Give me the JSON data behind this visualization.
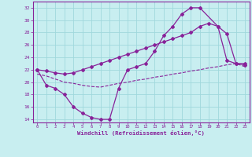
{
  "xlabel": "Windchill (Refroidissement éolien,°C)",
  "bg_color": "#c8eef0",
  "grid_color": "#a0d8dc",
  "line_color": "#882299",
  "xlim": [
    -0.5,
    23.5
  ],
  "ylim": [
    13.5,
    33
  ],
  "xticks": [
    0,
    1,
    2,
    3,
    4,
    5,
    6,
    7,
    8,
    9,
    10,
    11,
    12,
    13,
    14,
    15,
    16,
    17,
    18,
    19,
    20,
    21,
    22,
    23
  ],
  "yticks": [
    14,
    16,
    18,
    20,
    22,
    24,
    26,
    28,
    30,
    32
  ],
  "line1_x": [
    0,
    1,
    2,
    3,
    4,
    5,
    6,
    7,
    8,
    9,
    10,
    11,
    12,
    13,
    14,
    15,
    16,
    17,
    18,
    20,
    21,
    22,
    23
  ],
  "line1_y": [
    22,
    19.5,
    19,
    18,
    16,
    15,
    14.3,
    14,
    14,
    19,
    22,
    22.5,
    23,
    25,
    27.5,
    29,
    31,
    32,
    32,
    29,
    23.5,
    23,
    23
  ],
  "line2_x": [
    0,
    1,
    2,
    3,
    4,
    5,
    6,
    7,
    8,
    9,
    10,
    11,
    12,
    13,
    14,
    15,
    16,
    17,
    18,
    19,
    20,
    21,
    22,
    23
  ],
  "line2_y": [
    21.3,
    21.0,
    20.5,
    20.0,
    19.8,
    19.5,
    19.3,
    19.2,
    19.5,
    19.8,
    20.0,
    20.3,
    20.5,
    20.8,
    21.0,
    21.3,
    21.5,
    21.8,
    22.0,
    22.3,
    22.5,
    22.8,
    23.0,
    22.5
  ],
  "line3_x": [
    0,
    1,
    2,
    3,
    4,
    5,
    6,
    7,
    8,
    9,
    10,
    11,
    12,
    13,
    14,
    15,
    16,
    17,
    18,
    19,
    20,
    21,
    22,
    23
  ],
  "line3_y": [
    22,
    21.8,
    21.5,
    21.3,
    21.5,
    22.0,
    22.5,
    23.0,
    23.5,
    24.0,
    24.5,
    25.0,
    25.5,
    26.0,
    26.5,
    27.0,
    27.5,
    28.0,
    29.0,
    29.5,
    29.0,
    27.8,
    23.0,
    22.8
  ]
}
